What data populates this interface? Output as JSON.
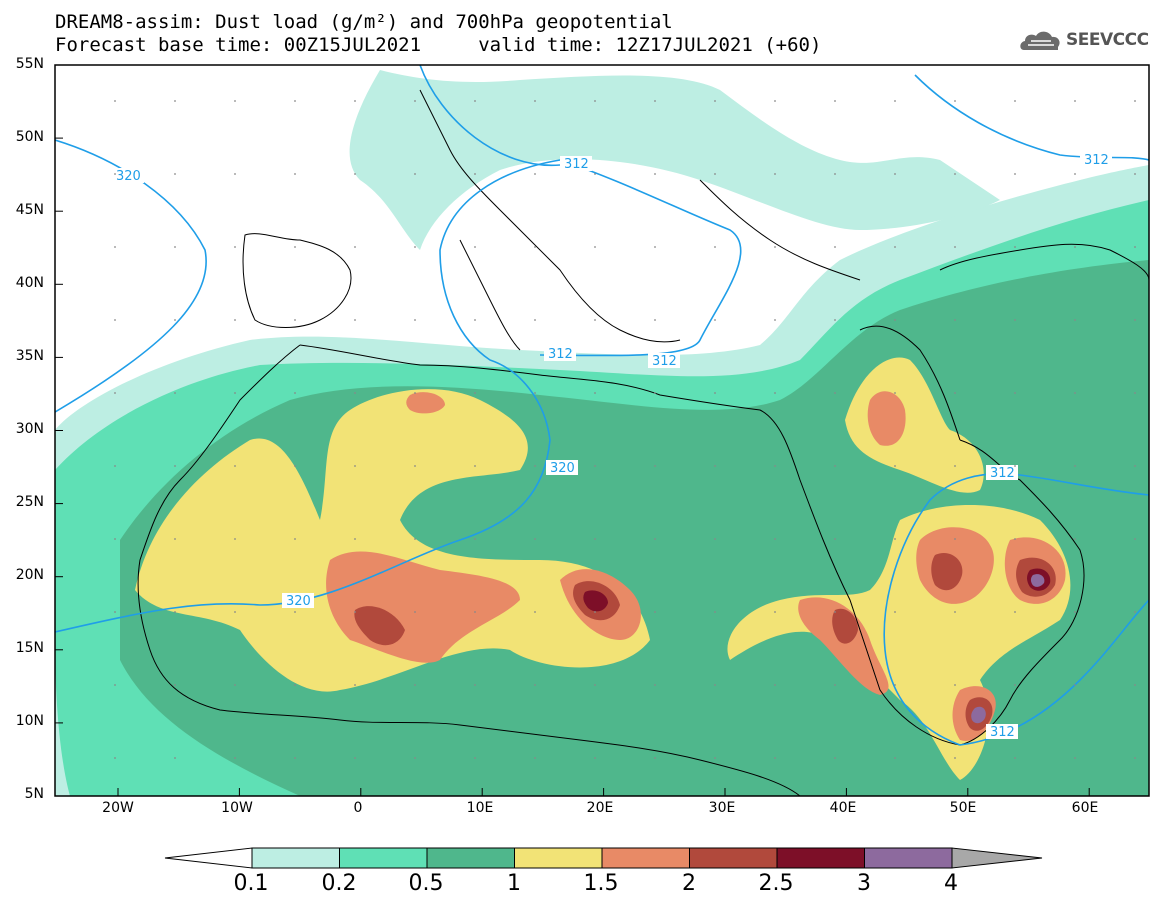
{
  "header": {
    "title_line1": "DREAM8-assim: Dust load (g/m²) and 700hPa geopotential",
    "title_line2": "Forecast base time: 00Z15JUL2021     valid time: 12Z17JUL2021 (+60)",
    "logo_text": "SEEVCCC"
  },
  "axes": {
    "lat_labels": [
      "55N",
      "50N",
      "45N",
      "40N",
      "35N",
      "30N",
      "25N",
      "20N",
      "15N",
      "10N",
      "5N"
    ],
    "lon_labels": [
      "20W",
      "10W",
      "0",
      "10E",
      "20E",
      "30E",
      "40E",
      "50E",
      "60E"
    ]
  },
  "geopotential_labels": [
    "320",
    "312",
    "312",
    "312",
    "312",
    "320",
    "320",
    "312",
    "312"
  ],
  "colorbar": {
    "levels": [
      "0.1",
      "0.2",
      "0.5",
      "1",
      "1.5",
      "2",
      "2.5",
      "3",
      "4"
    ],
    "colors": [
      "#bdeee3",
      "#5fe0b5",
      "#4fb78c",
      "#f2e376",
      "#e88a66",
      "#b1493c",
      "#7d0f28",
      "#8d6a9e",
      "#a8a8a8"
    ]
  },
  "colors": {
    "land_outline": "#000000",
    "contour_line": "#1f9ee8"
  }
}
